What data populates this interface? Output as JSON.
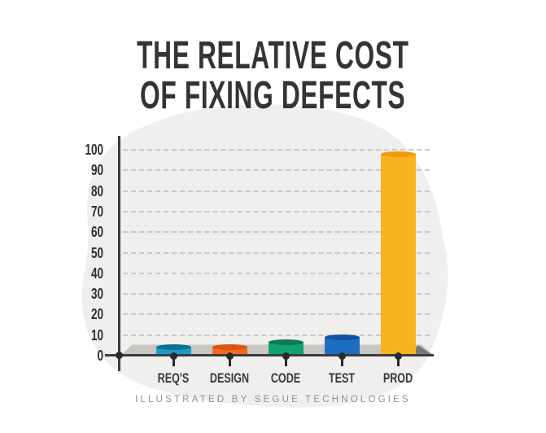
{
  "title": {
    "line1": "THE RELATIVE COST",
    "line2": "OF FIXING DEFECTS"
  },
  "footer": {
    "credit": "ILLUSTRATED BY SEGUE TECHNOLOGIES"
  },
  "chart_data": {
    "type": "bar",
    "title": "THE RELATIVE COST OF FIXING DEFECTS",
    "subtitle": "",
    "xlabel": "",
    "ylabel": "",
    "categories": [
      "REQ'S",
      "DESIGN",
      "CODE",
      "TEST",
      "PROD"
    ],
    "values": [
      4,
      4,
      6.5,
      9,
      98
    ],
    "ylim": [
      0,
      100
    ],
    "yticks": [
      0,
      10,
      20,
      30,
      40,
      50,
      60,
      70,
      80,
      90,
      100
    ],
    "grid": "horizontal-dashed",
    "legend": "none",
    "bar_style": "3d-cylinder",
    "bar_colors": [
      {
        "body": "#1e9bc4",
        "top": "#0d7195"
      },
      {
        "body": "#f16a1e",
        "top": "#d9540e"
      },
      {
        "body": "#12a170",
        "top": "#0b7c50"
      },
      {
        "body": "#1d6ec2",
        "top": "#12529e"
      },
      {
        "body": "#f7b41e",
        "top": "#f09b07"
      }
    ],
    "axis_color": "#3c3c3e",
    "grid_color": "#cbc9c9",
    "platform_color": "#c8c6c3",
    "platform_shadow_color": "#7b7978",
    "background_blob_color": "#f0efee",
    "title_color": "#343338",
    "label_color": "#39393b",
    "credit_color": "#918f95"
  }
}
